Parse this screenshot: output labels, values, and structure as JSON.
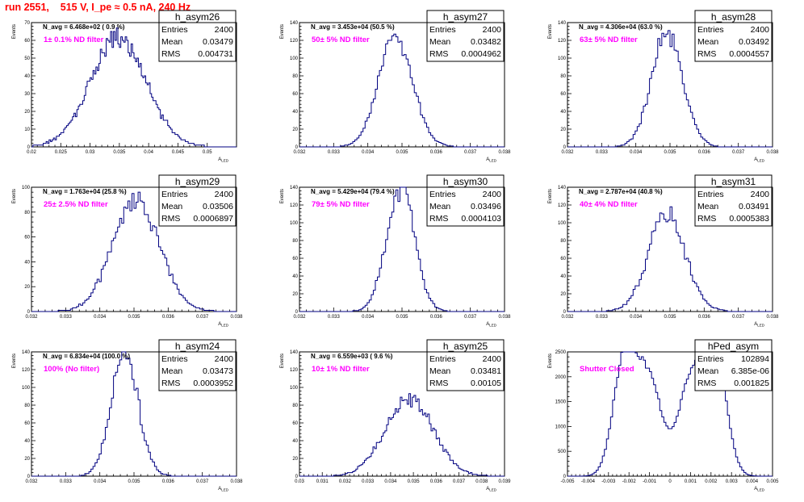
{
  "title": "run 2551,    515 V, I_pe ≈ 0.5 nA, 240 Hz",
  "axis_labels": {
    "x": "A",
    "x_sub": "LED",
    "y": "Events"
  },
  "stats_labels": {
    "entries": "Entries",
    "mean": "Mean",
    "rms": "RMS"
  },
  "colors": {
    "title": "#ff0000",
    "annotation": "#ff00ff",
    "histogram": "#000080"
  },
  "chart_data": [
    {
      "type": "histogram",
      "name": "h_asym26",
      "nav_label": "N_avg = 6.468e+02 ( 0.9 %)",
      "annotation": "1± 0.1% ND filter",
      "entries": "2400",
      "mean": "0.03479",
      "rms": "0.004731",
      "xlim": [
        0.02,
        0.055
      ],
      "ylim": [
        0,
        70
      ],
      "xticks": [
        0.02,
        0.025,
        0.03,
        0.035,
        0.04,
        0.045,
        0.05
      ],
      "xtick_labels": [
        "0.02",
        "0.025",
        "0.03",
        "0.035",
        "0.04",
        "0.045",
        "0.05"
      ],
      "yticks": [
        0,
        10,
        20,
        30,
        40,
        50,
        60,
        70
      ],
      "ytick_labels": [
        "0",
        "10",
        "20",
        "30",
        "40",
        "50",
        "60",
        "70"
      ],
      "dist": {
        "centers": [
          0.03479
        ],
        "sigmas": [
          0.004731
        ],
        "weights": [
          1
        ],
        "peak": 62,
        "seed": 26,
        "bins": 140
      }
    },
    {
      "type": "histogram",
      "name": "h_asym27",
      "nav_label": "N_avg = 3.453e+04 (50.5 %)",
      "annotation": "50± 5% ND filter",
      "entries": "2400",
      "mean": "0.03482",
      "rms": "0.0004962",
      "xlim": [
        0.032,
        0.038
      ],
      "ylim": [
        0,
        140
      ],
      "xticks": [
        0.032,
        0.033,
        0.034,
        0.035,
        0.036,
        0.037,
        0.038
      ],
      "xtick_labels": [
        "0.032",
        "0.033",
        "0.034",
        "0.035",
        "0.036",
        "0.037",
        "0.038"
      ],
      "yticks": [
        0,
        20,
        40,
        60,
        80,
        100,
        120,
        140
      ],
      "ytick_labels": [
        "0",
        "20",
        "40",
        "60",
        "80",
        "100",
        "120",
        "140"
      ],
      "dist": {
        "centers": [
          0.03482
        ],
        "sigmas": [
          0.0004962
        ],
        "weights": [
          1
        ],
        "peak": 125,
        "seed": 27,
        "bins": 100
      }
    },
    {
      "type": "histogram",
      "name": "h_asym28",
      "nav_label": "N_avg = 4.306e+04 (63.0 %)",
      "annotation": "63± 5% ND filter",
      "entries": "2400",
      "mean": "0.03492",
      "rms": "0.0004557",
      "xlim": [
        0.032,
        0.038
      ],
      "ylim": [
        0,
        140
      ],
      "xticks": [
        0.032,
        0.033,
        0.034,
        0.035,
        0.036,
        0.037,
        0.038
      ],
      "xtick_labels": [
        "0.032",
        "0.033",
        "0.034",
        "0.035",
        "0.036",
        "0.037",
        "0.038"
      ],
      "yticks": [
        0,
        20,
        40,
        60,
        80,
        100,
        120,
        140
      ],
      "ytick_labels": [
        "0",
        "20",
        "40",
        "60",
        "80",
        "100",
        "120",
        "140"
      ],
      "dist": {
        "centers": [
          0.03492
        ],
        "sigmas": [
          0.0004557
        ],
        "weights": [
          1
        ],
        "peak": 130,
        "seed": 28,
        "bins": 100
      }
    },
    {
      "type": "histogram",
      "name": "h_asym29",
      "nav_label": "N_avg = 1.763e+04 (25.8 %)",
      "annotation": "25± 2.5% ND filter",
      "entries": "2400",
      "mean": "0.03506",
      "rms": "0.0006897",
      "xlim": [
        0.032,
        0.038
      ],
      "ylim": [
        0,
        100
      ],
      "xticks": [
        0.032,
        0.033,
        0.034,
        0.035,
        0.036,
        0.037,
        0.038
      ],
      "xtick_labels": [
        "0.032",
        "0.033",
        "0.034",
        "0.035",
        "0.036",
        "0.037",
        "0.038"
      ],
      "yticks": [
        0,
        20,
        40,
        60,
        80,
        100
      ],
      "ytick_labels": [
        "0",
        "20",
        "40",
        "60",
        "80",
        "100"
      ],
      "dist": {
        "centers": [
          0.03506
        ],
        "sigmas": [
          0.0006897
        ],
        "weights": [
          1
        ],
        "peak": 88,
        "seed": 29,
        "bins": 100
      }
    },
    {
      "type": "histogram",
      "name": "h_asym30",
      "nav_label": "N_avg = 5.429e+04 (79.4 %)",
      "annotation": "79± 5% ND filter",
      "entries": "2400",
      "mean": "0.03496",
      "rms": "0.0004103",
      "xlim": [
        0.032,
        0.038
      ],
      "ylim": [
        0,
        140
      ],
      "xticks": [
        0.032,
        0.033,
        0.034,
        0.035,
        0.036,
        0.037,
        0.038
      ],
      "xtick_labels": [
        "0.032",
        "0.033",
        "0.034",
        "0.035",
        "0.036",
        "0.037",
        "0.038"
      ],
      "yticks": [
        0,
        20,
        40,
        60,
        80,
        100,
        120,
        140
      ],
      "ytick_labels": [
        "0",
        "20",
        "40",
        "60",
        "80",
        "100",
        "120",
        "140"
      ],
      "dist": {
        "centers": [
          0.03496
        ],
        "sigmas": [
          0.0004103
        ],
        "weights": [
          1
        ],
        "peak": 138,
        "seed": 30,
        "bins": 100
      }
    },
    {
      "type": "histogram",
      "name": "h_asym31",
      "nav_label": "N_avg = 2.787e+04 (40.8 %)",
      "annotation": "40± 4% ND filter",
      "entries": "2400",
      "mean": "0.03491",
      "rms": "0.0005383",
      "xlim": [
        0.032,
        0.038
      ],
      "ylim": [
        0,
        140
      ],
      "xticks": [
        0.032,
        0.033,
        0.034,
        0.035,
        0.036,
        0.037,
        0.038
      ],
      "xtick_labels": [
        "0.032",
        "0.033",
        "0.034",
        "0.035",
        "0.036",
        "0.037",
        "0.038"
      ],
      "yticks": [
        0,
        20,
        40,
        60,
        80,
        100,
        120,
        140
      ],
      "ytick_labels": [
        "0",
        "20",
        "40",
        "60",
        "80",
        "100",
        "120",
        "140"
      ],
      "dist": {
        "centers": [
          0.03491
        ],
        "sigmas": [
          0.0005383
        ],
        "weights": [
          1
        ],
        "peak": 110,
        "seed": 31,
        "bins": 100
      }
    },
    {
      "type": "histogram",
      "name": "h_asym24",
      "nav_label": "N_avg = 6.834e+04 (100.0 %)",
      "annotation": "100% (No filter)",
      "entries": "2400",
      "mean": "0.03473",
      "rms": "0.0003952",
      "xlim": [
        0.032,
        0.038
      ],
      "ylim": [
        0,
        140
      ],
      "xticks": [
        0.032,
        0.033,
        0.034,
        0.035,
        0.036,
        0.037,
        0.038
      ],
      "xtick_labels": [
        "0.032",
        "0.033",
        "0.034",
        "0.035",
        "0.036",
        "0.037",
        "0.038"
      ],
      "yticks": [
        0,
        20,
        40,
        60,
        80,
        100,
        120,
        140
      ],
      "ytick_labels": [
        "0",
        "20",
        "40",
        "60",
        "80",
        "100",
        "120",
        "140"
      ],
      "dist": {
        "centers": [
          0.03473
        ],
        "sigmas": [
          0.0003952
        ],
        "weights": [
          1
        ],
        "peak": 138,
        "seed": 24,
        "bins": 100
      }
    },
    {
      "type": "histogram",
      "name": "h_asym25",
      "nav_label": "N_avg = 6.559e+03 ( 9.6 %)",
      "annotation": "10± 1% ND filter",
      "entries": "2400",
      "mean": "0.03481",
      "rms": "0.00105",
      "xlim": [
        0.03,
        0.039
      ],
      "ylim": [
        0,
        140
      ],
      "xticks": [
        0.03,
        0.031,
        0.032,
        0.033,
        0.034,
        0.035,
        0.036,
        0.037,
        0.038,
        0.039
      ],
      "xtick_labels": [
        "0.03",
        "0.031",
        "0.032",
        "0.033",
        "0.034",
        "0.035",
        "0.036",
        "0.037",
        "0.038",
        "0.039"
      ],
      "yticks": [
        0,
        20,
        40,
        60,
        80,
        100,
        120,
        140
      ],
      "ytick_labels": [
        "0",
        "20",
        "40",
        "60",
        "80",
        "100",
        "120",
        "140"
      ],
      "dist": {
        "centers": [
          0.03481
        ],
        "sigmas": [
          0.00105
        ],
        "weights": [
          1
        ],
        "peak": 88,
        "seed": 25,
        "bins": 120
      }
    },
    {
      "type": "histogram",
      "name": "hPed_asym",
      "nav_label": "",
      "annotation": "Shutter Closed",
      "entries": "102894",
      "mean": "6.385e-06",
      "rms": "0.001825",
      "xlim": [
        -0.005,
        0.005
      ],
      "ylim": [
        0,
        2500
      ],
      "xticks": [
        -0.005,
        -0.004,
        -0.003,
        -0.002,
        -0.001,
        0,
        0.001,
        0.002,
        0.003,
        0.004,
        0.005
      ],
      "xtick_labels": [
        "-0.005",
        "-0.004",
        "-0.003",
        "-0.002",
        "-0.001",
        "0",
        "0.001",
        "0.002",
        "0.003",
        "0.004",
        "0.005"
      ],
      "yticks": [
        0,
        500,
        1000,
        1500,
        2000,
        2500
      ],
      "ytick_labels": [
        "0",
        "500",
        "1000",
        "1500",
        "2000",
        "2500"
      ],
      "dist": {
        "centers": [
          -0.0022,
          -0.001,
          0.001,
          0.0022
        ],
        "sigmas": [
          0.00055,
          0.0006,
          0.0006,
          0.00055
        ],
        "weights": [
          1.0,
          0.78,
          0.78,
          1.0
        ],
        "peak": 2420,
        "seed": 99,
        "bins": 100,
        "noise": 0.03
      }
    }
  ]
}
